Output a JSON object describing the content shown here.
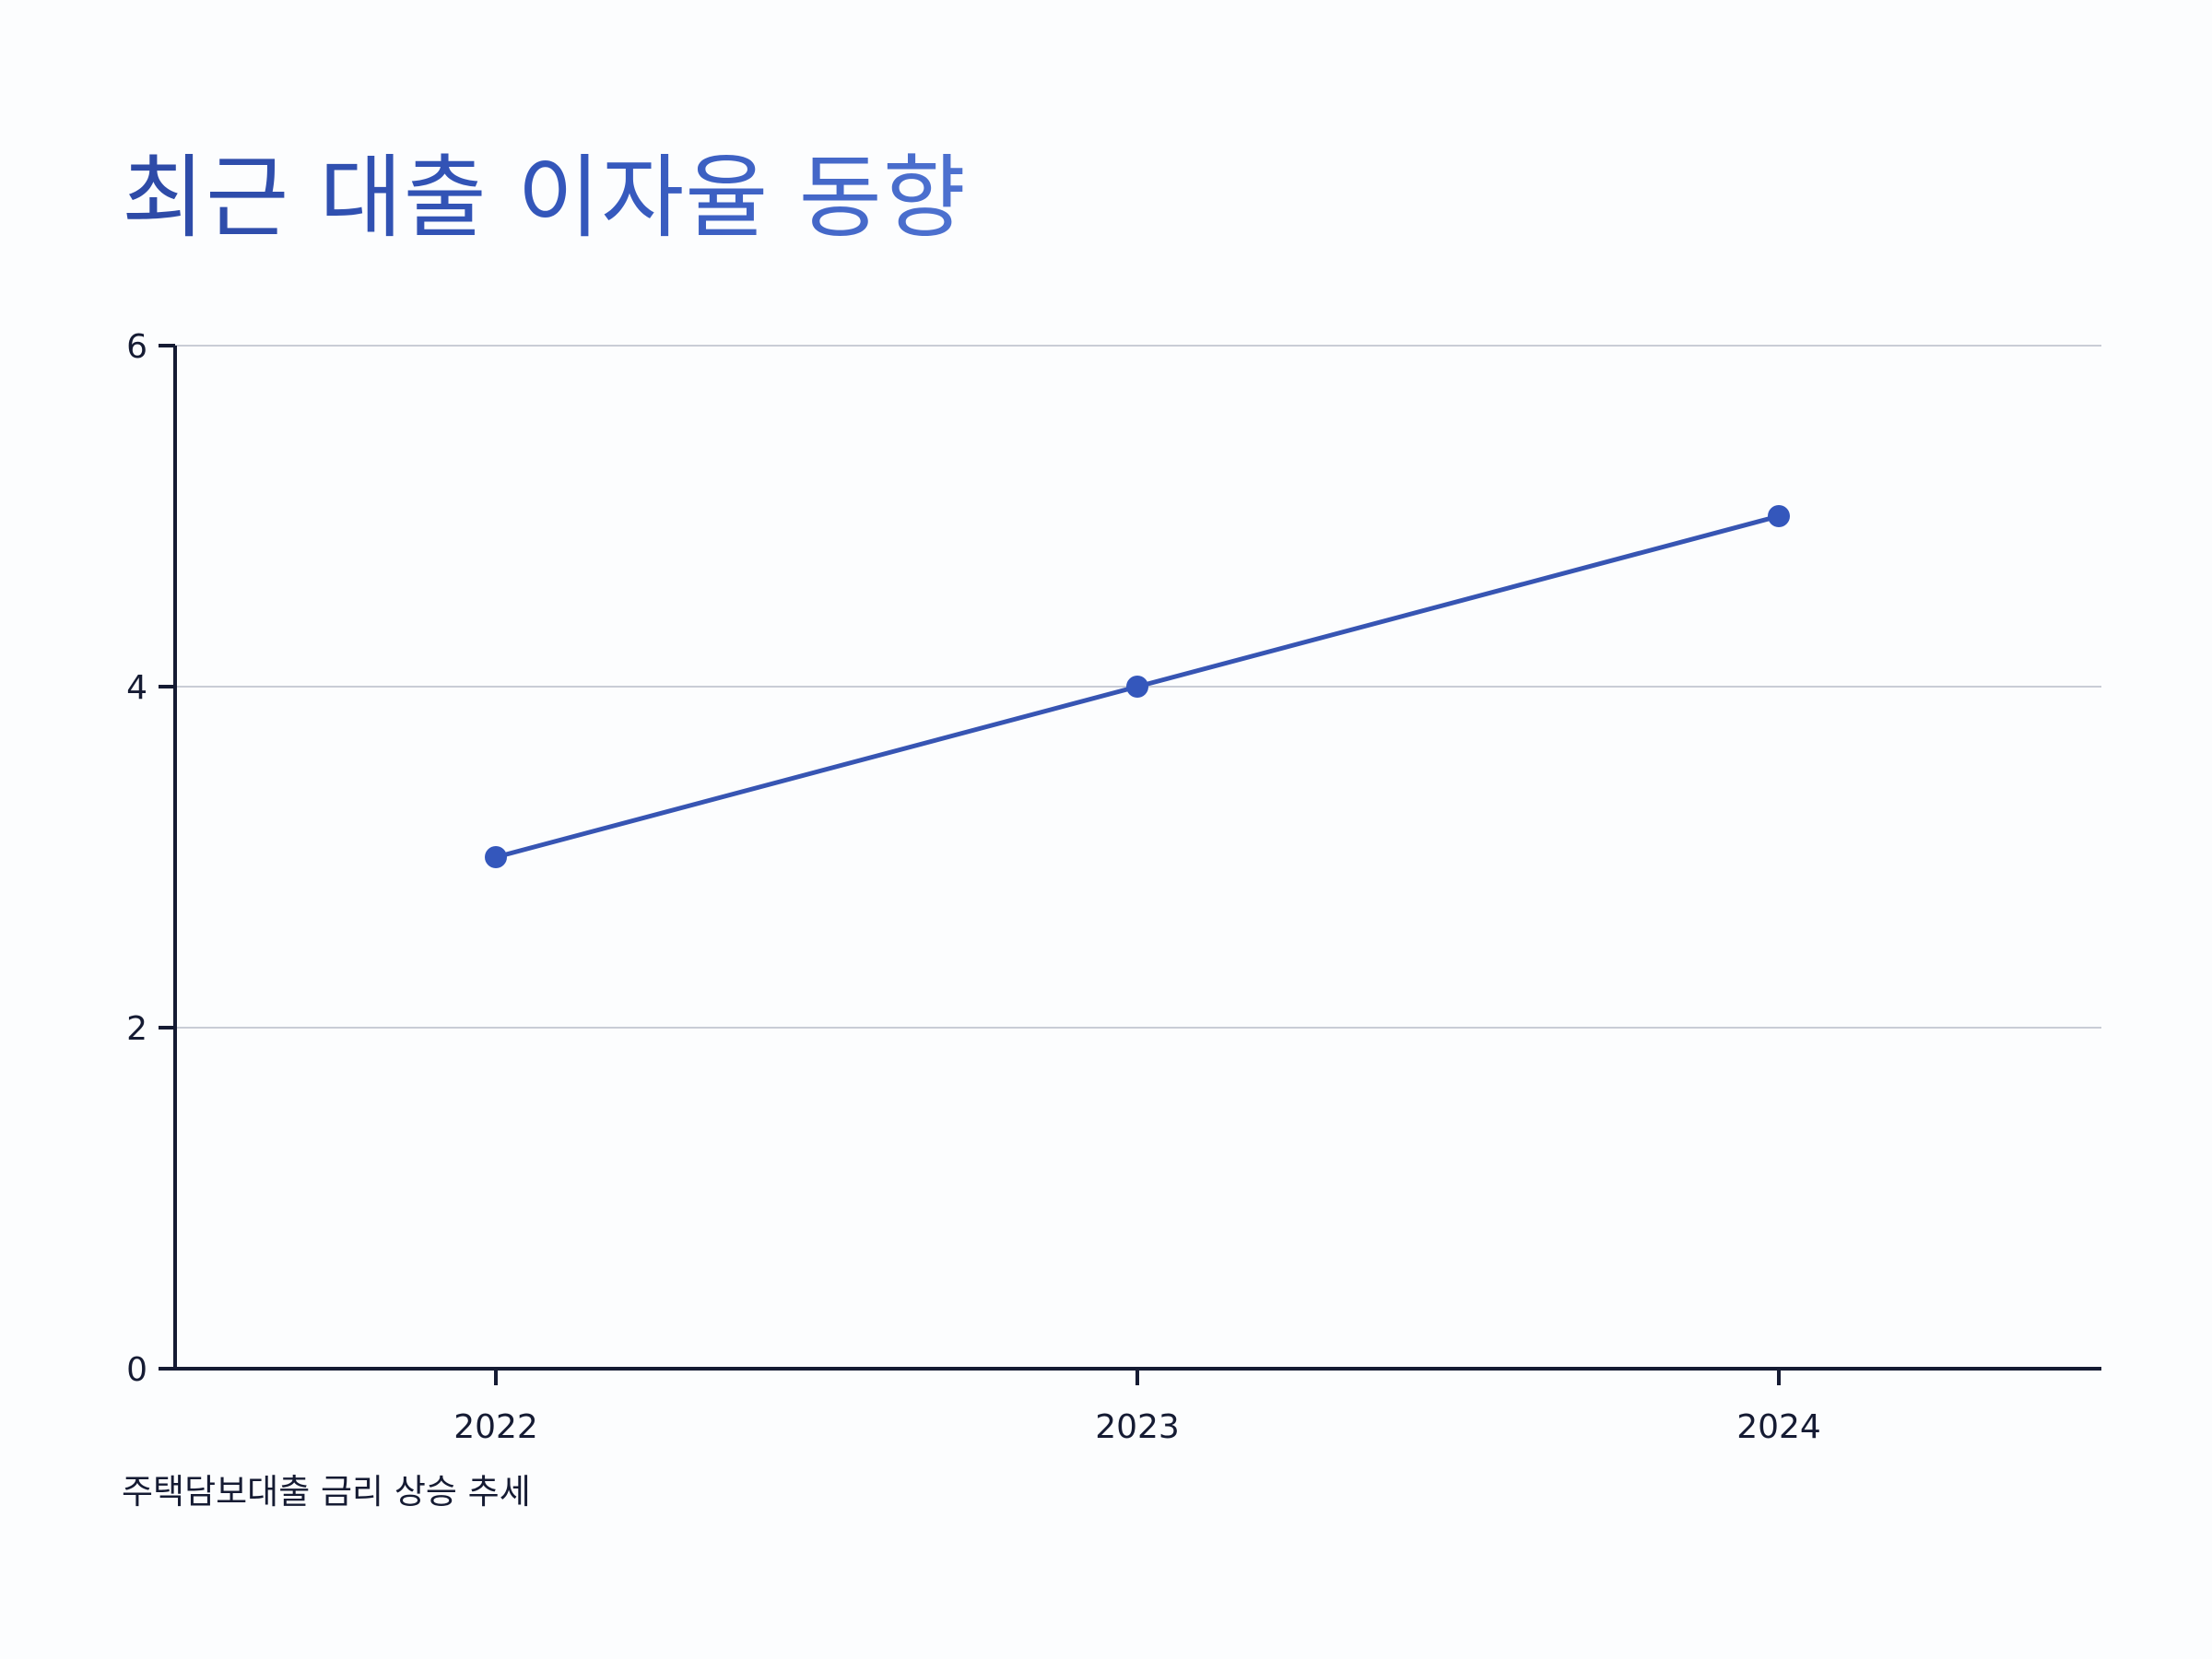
{
  "chart_data": {
    "type": "line",
    "title": "최근 대출 이자율 동향",
    "subtitle": "주택담보대출 금리 상승 추세",
    "xlabel": "",
    "ylabel": "",
    "categories": [
      "2022",
      "2023",
      "2024"
    ],
    "series": [
      {
        "values": [
          3,
          4,
          5
        ]
      }
    ],
    "ylim": [
      0,
      6
    ],
    "yticks": [
      "0",
      "2",
      "4",
      "6"
    ],
    "grid": true,
    "legend": "none",
    "colors": {
      "line": "#3755b3",
      "point": "#3457bc",
      "axis": "#151b33",
      "grid": "#c9cdd6"
    }
  }
}
